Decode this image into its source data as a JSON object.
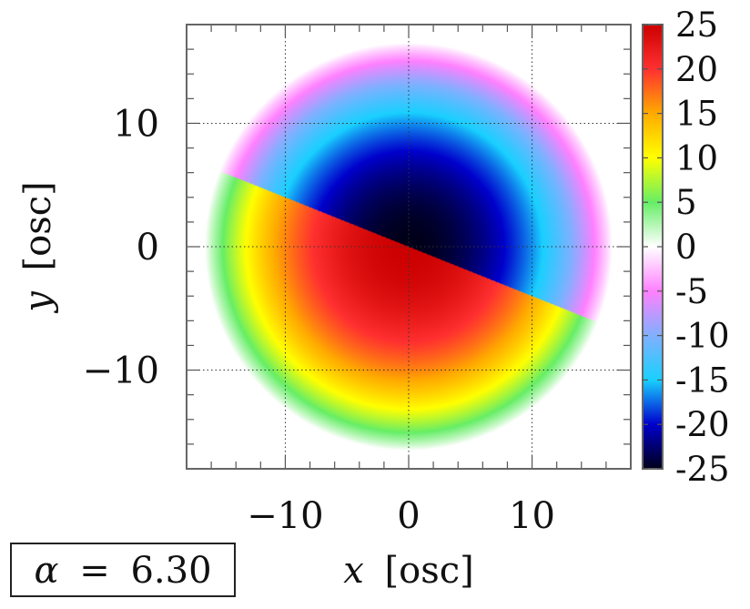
{
  "chart_data": {
    "type": "heatmap",
    "title": "",
    "xlabel_var": "x",
    "xlabel_unit": "[osc]",
    "ylabel_var": "y",
    "ylabel_unit": "[osc]",
    "xlim": [
      -18,
      18
    ],
    "ylim": [
      -18,
      18
    ],
    "xticks": [
      -10,
      0,
      10
    ],
    "yticks": [
      -10,
      0,
      10
    ],
    "xtick_labels": [
      "−10",
      "0",
      "10"
    ],
    "ytick_labels": [
      "−10",
      "0",
      "10"
    ],
    "grid": true,
    "colorbar": {
      "min": -25,
      "max": 25,
      "tick_labels": [
        "25",
        "20",
        "15",
        "10",
        "5",
        "0",
        "-5",
        "-10",
        "-15",
        "-20",
        "-25"
      ],
      "stops": [
        {
          "value": -25,
          "color": "#000018"
        },
        {
          "value": -20,
          "color": "#0000cc"
        },
        {
          "value": -15,
          "color": "#19d0ff"
        },
        {
          "value": -10,
          "color": "#80b0ff"
        },
        {
          "value": -5,
          "color": "#ff80ff"
        },
        {
          "value": 0,
          "color": "#ffffff"
        },
        {
          "value": 5,
          "color": "#66ee66"
        },
        {
          "value": 10,
          "color": "#ffff00"
        },
        {
          "value": 15,
          "color": "#ffaa00"
        },
        {
          "value": 20,
          "color": "#ff3030"
        },
        {
          "value": 25,
          "color": "#cc0000"
        }
      ]
    },
    "field": {
      "disk_radius": 16.5,
      "center_value": 25,
      "upper_half_sign": -1,
      "lower_half_sign": 1,
      "split_line": {
        "x1": -15.5,
        "y1": 6.2,
        "x2": 15.5,
        "y2": -6.2
      }
    },
    "annotation": {
      "symbol": "α",
      "equals": "=",
      "value": "6.30"
    }
  }
}
